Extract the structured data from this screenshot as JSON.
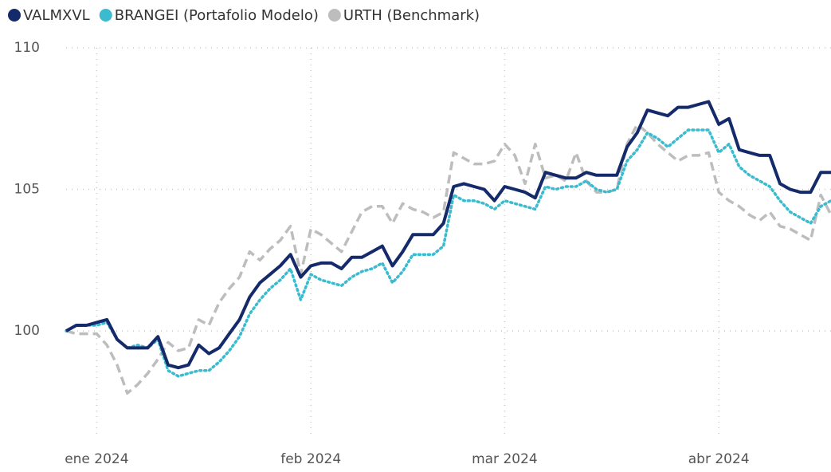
{
  "chart_data": {
    "type": "line",
    "categories": [
      null,
      null,
      null,
      "ene 2024",
      null,
      null,
      null,
      null,
      null,
      null,
      null,
      null,
      null,
      null,
      null,
      null,
      null,
      null,
      null,
      null,
      null,
      null,
      null,
      null,
      "feb 2024",
      null,
      null,
      null,
      null,
      null,
      null,
      null,
      null,
      null,
      null,
      null,
      null,
      null,
      null,
      null,
      null,
      null,
      null,
      "mar 2024",
      null,
      null,
      null,
      null,
      null,
      null,
      null,
      null,
      null,
      null,
      null,
      null,
      null,
      null,
      null,
      null,
      null,
      null,
      null,
      null,
      "abr 2024",
      null,
      null,
      null,
      null,
      null,
      null,
      null,
      null,
      null,
      null,
      null
    ],
    "series": [
      {
        "name": "VALMXVL",
        "color": "#142a6b",
        "style": "solid",
        "values": [
          100.0,
          100.2,
          100.2,
          100.3,
          100.4,
          99.7,
          99.4,
          99.4,
          99.4,
          99.8,
          98.8,
          98.7,
          98.8,
          99.5,
          99.2,
          99.4,
          99.9,
          100.4,
          101.2,
          101.7,
          102.0,
          102.3,
          102.7,
          101.9,
          102.3,
          102.4,
          102.4,
          102.2,
          102.6,
          102.6,
          102.8,
          103.0,
          102.3,
          102.8,
          103.4,
          103.4,
          103.4,
          103.8,
          105.1,
          105.2,
          105.1,
          105.0,
          104.6,
          105.1,
          105.0,
          104.9,
          104.7,
          105.6,
          105.5,
          105.4,
          105.4,
          105.6,
          105.5,
          105.5,
          105.5,
          106.5,
          107.0,
          107.8,
          107.7,
          107.6,
          107.9,
          107.9,
          108.0,
          108.1,
          107.3,
          107.5,
          106.4,
          106.3,
          106.2,
          106.2,
          105.2,
          105.0,
          104.9,
          104.9,
          105.6,
          105.6
        ]
      },
      {
        "name": "BRANGEI (Portafolio Modelo)",
        "color": "#3bbbcf",
        "style": "dotted",
        "values": [
          100.0,
          100.2,
          100.2,
          100.2,
          100.3,
          99.7,
          99.4,
          99.5,
          99.4,
          99.7,
          98.6,
          98.4,
          98.5,
          98.6,
          98.6,
          98.9,
          99.3,
          99.8,
          100.6,
          101.1,
          101.5,
          101.8,
          102.2,
          101.1,
          102.0,
          101.8,
          101.7,
          101.6,
          101.9,
          102.1,
          102.2,
          102.4,
          101.7,
          102.1,
          102.7,
          102.7,
          102.7,
          103.0,
          104.8,
          104.6,
          104.6,
          104.5,
          104.3,
          104.6,
          104.5,
          104.4,
          104.3,
          105.1,
          105.0,
          105.1,
          105.1,
          105.3,
          105.0,
          104.9,
          105.0,
          106.0,
          106.4,
          107.0,
          106.8,
          106.5,
          106.8,
          107.1,
          107.1,
          107.1,
          106.3,
          106.6,
          105.8,
          105.5,
          105.3,
          105.1,
          104.6,
          104.2,
          104.0,
          103.8,
          104.4,
          104.6
        ]
      },
      {
        "name": "URTH (Benchmark)",
        "color": "#bdbdbd",
        "style": "dashed",
        "values": [
          100.0,
          99.9,
          99.9,
          99.9,
          99.5,
          98.8,
          97.8,
          98.1,
          98.5,
          99.0,
          99.6,
          99.3,
          99.4,
          100.4,
          100.2,
          101.0,
          101.5,
          101.9,
          102.8,
          102.5,
          102.9,
          103.2,
          103.7,
          102.0,
          103.6,
          103.4,
          103.1,
          102.8,
          103.5,
          104.2,
          104.4,
          104.4,
          103.8,
          104.5,
          104.3,
          104.2,
          104.0,
          104.2,
          106.3,
          106.1,
          105.9,
          105.9,
          106.0,
          106.6,
          106.2,
          105.2,
          106.6,
          105.4,
          105.5,
          105.3,
          106.3,
          105.3,
          104.9,
          104.9,
          105.0,
          106.6,
          107.3,
          107.0,
          106.6,
          106.3,
          106.0,
          106.2,
          106.2,
          106.3,
          104.9,
          104.6,
          104.4,
          104.1,
          103.9,
          104.2,
          103.7,
          103.6,
          103.4,
          103.2,
          104.8,
          104.1
        ]
      }
    ],
    "ylim": [
      96.2,
      110
    ],
    "yticks": [
      100,
      105,
      110
    ],
    "grid": true,
    "legend": "top-left"
  }
}
